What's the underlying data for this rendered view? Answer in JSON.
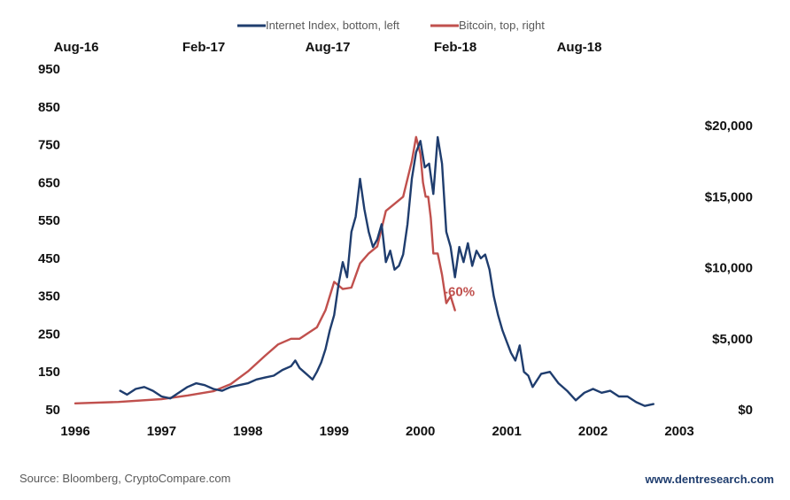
{
  "chart_data": {
    "type": "line",
    "legend": {
      "placement": "top-center",
      "entries": [
        "Internet Index, bottom, left",
        "Bitcoin, top, right"
      ]
    },
    "axes": {
      "bottom": {
        "ticks": [
          "1996",
          "1997",
          "1998",
          "1999",
          "2000",
          "2001",
          "2002",
          "2003"
        ],
        "range": [
          1996,
          2003
        ]
      },
      "top": {
        "ticks": [
          "Aug-16",
          "Feb-17",
          "Aug-17",
          "Feb-18",
          "Aug-18"
        ]
      },
      "left": {
        "ticks": [
          "950",
          "850",
          "750",
          "650",
          "550",
          "450",
          "350",
          "250",
          "150",
          "50"
        ],
        "range": [
          50,
          950
        ]
      },
      "right": {
        "ticks": [
          "$20,000",
          "$15,000",
          "$10,000",
          "$5,000",
          "$0"
        ],
        "range": [
          0,
          20000
        ]
      }
    },
    "series": [
      {
        "name": "Internet Index, bottom, left",
        "color": "#1f3d6e",
        "axis": "left",
        "x": [
          1996.52,
          1996.6,
          1996.7,
          1996.8,
          1996.9,
          1997.0,
          1997.1,
          1997.2,
          1997.3,
          1997.4,
          1997.5,
          1997.6,
          1997.7,
          1997.8,
          1997.9,
          1998.0,
          1998.1,
          1998.2,
          1998.3,
          1998.4,
          1998.5,
          1998.55,
          1998.6,
          1998.65,
          1998.7,
          1998.75,
          1998.8,
          1998.85,
          1998.9,
          1998.95,
          1999.0,
          1999.05,
          1999.1,
          1999.15,
          1999.2,
          1999.25,
          1999.3,
          1999.35,
          1999.4,
          1999.45,
          1999.5,
          1999.55,
          1999.6,
          1999.65,
          1999.7,
          1999.75,
          1999.8,
          1999.85,
          1999.9,
          1999.95,
          2000.0,
          2000.05,
          2000.1,
          2000.15,
          2000.2,
          2000.25,
          2000.3,
          2000.35,
          2000.4,
          2000.45,
          2000.5,
          2000.55,
          2000.6,
          2000.65,
          2000.7,
          2000.75,
          2000.8,
          2000.85,
          2000.9,
          2000.95,
          2001.0,
          2001.05,
          2001.1,
          2001.15,
          2001.2,
          2001.25,
          2001.3,
          2001.4,
          2001.5,
          2001.6,
          2001.7,
          2001.8,
          2001.9,
          2002.0,
          2002.1,
          2002.2,
          2002.3,
          2002.4,
          2002.5,
          2002.6,
          2002.7
        ],
        "values": [
          100,
          90,
          105,
          110,
          100,
          85,
          80,
          95,
          110,
          120,
          115,
          105,
          100,
          110,
          115,
          120,
          130,
          135,
          140,
          155,
          165,
          180,
          160,
          150,
          140,
          130,
          150,
          175,
          210,
          260,
          300,
          380,
          440,
          400,
          520,
          560,
          660,
          580,
          520,
          480,
          500,
          540,
          440,
          470,
          420,
          430,
          460,
          540,
          660,
          730,
          760,
          690,
          700,
          620,
          770,
          700,
          520,
          480,
          400,
          480,
          440,
          490,
          430,
          470,
          450,
          460,
          420,
          350,
          300,
          260,
          230,
          200,
          180,
          220,
          150,
          140,
          110,
          145,
          150,
          120,
          100,
          75,
          95,
          105,
          95,
          100,
          85,
          85,
          70,
          60,
          65
        ]
      },
      {
        "name": "Bitcoin, top, right",
        "color": "#c0504d",
        "axis": "right",
        "x": [
          1996.0,
          1996.5,
          1997.0,
          1997.3,
          1997.6,
          1997.8,
          1998.0,
          1998.2,
          1998.35,
          1998.5,
          1998.6,
          1998.7,
          1998.8,
          1998.9,
          1999.0,
          1999.1,
          1999.2,
          1999.3,
          1999.4,
          1999.5,
          1999.6,
          1999.7,
          1999.8,
          1999.9,
          1999.95,
          2000.0,
          2000.03,
          2000.06,
          2000.09,
          2000.12,
          2000.15,
          2000.2,
          2000.25,
          2000.3,
          2000.35,
          2000.4
        ],
        "values": [
          450,
          550,
          750,
          1000,
          1300,
          1800,
          2700,
          3800,
          4600,
          5000,
          5000,
          5400,
          5800,
          7000,
          9000,
          8500,
          8600,
          10300,
          11000,
          11500,
          14000,
          14500,
          15000,
          17500,
          19200,
          18000,
          16000,
          15000,
          15000,
          13500,
          11000,
          11000,
          9500,
          7500,
          8000,
          7000
        ]
      }
    ],
    "annotations": [
      {
        "text": "-60%",
        "color": "#c0504d",
        "x": 2000.45,
        "y_left": 350
      }
    ]
  },
  "footer": {
    "source": "Source: Bloomberg, CryptoCompare.com",
    "website": "www.dentresearch.com"
  }
}
